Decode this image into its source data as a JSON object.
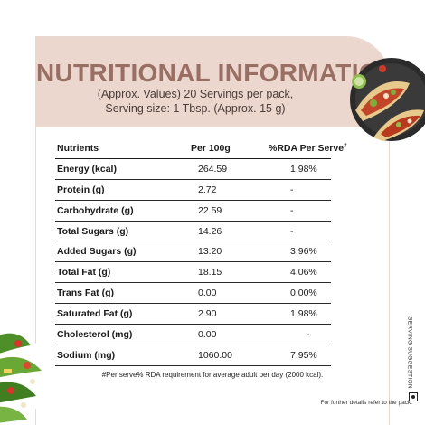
{
  "header": {
    "title": "NUTRITIONAL INFORMATION",
    "subtitle_line1": "(Approx. Values) 20 Servings per pack,",
    "subtitle_line2": "Serving size: 1 Tbsp. (Approx. 15 g)"
  },
  "table": {
    "headers": {
      "nutrient": "Nutrients",
      "per100": "Per 100g",
      "rda": "%RDA Per Serve",
      "rda_mark": "#"
    },
    "rows": [
      {
        "name": "Energy (kcal)",
        "per100": "264.59",
        "rda": "1.98%"
      },
      {
        "name": "Protein (g)",
        "per100": "2.72",
        "rda": "-"
      },
      {
        "name": "Carbohydrate (g)",
        "per100": "22.59",
        "rda": "-"
      },
      {
        "name": "Total Sugars (g)",
        "per100": "14.26",
        "rda": "-"
      },
      {
        "name": "Added Sugars (g)",
        "per100": "13.20",
        "rda": "3.96%"
      },
      {
        "name": "Total Fat (g)",
        "per100": "18.15",
        "rda": "4.06%"
      },
      {
        "name": "Trans Fat (g)",
        "per100": "0.00",
        "rda": "0.00%"
      },
      {
        "name": "Saturated Fat (g)",
        "per100": "2.90",
        "rda": "1.98%"
      },
      {
        "name": "Cholesterol (mg)",
        "per100": "0.00",
        "rda": "-"
      },
      {
        "name": "Sodium (mg)",
        "per100": "1060.00",
        "rda": "7.95%"
      }
    ]
  },
  "footnote": "#Per serve% RDA requirement for average adult per day (2000 kcal).",
  "further": "For further details refer to the pack.",
  "serving_suggestion": "SERVING SUGGESTION",
  "icons": [
    "taco-plate-image",
    "salad-image",
    "veg-mark-icon"
  ],
  "colors": {
    "band": "#ecd7cf",
    "title": "#9a6f63"
  }
}
